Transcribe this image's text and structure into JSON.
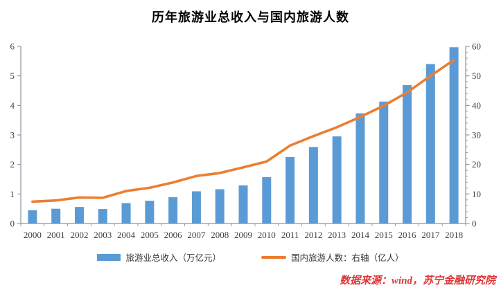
{
  "title": "历年旅游业总收入与国内旅游人数",
  "source": "数据来源：wind，苏宁金融研究院",
  "legend": [
    {
      "label": "旅游业总收入（万亿元）",
      "type": "bar"
    },
    {
      "label": "国内旅游人数：右轴（亿人）",
      "type": "line"
    }
  ],
  "colors": {
    "bar": "#5B9BD5",
    "line": "#ED7D31",
    "axis": "#8a93a0",
    "tick_label": "#3f3f3f",
    "title_text": "#000000",
    "source_text": "#e03434",
    "background": "#ffffff"
  },
  "chart_data": {
    "type": "bar",
    "subtype": "bar+line dual axis",
    "title": "历年旅游业总收入与国内旅游人数",
    "categories": [
      "2000",
      "2001",
      "2002",
      "2003",
      "2004",
      "2005",
      "2006",
      "2007",
      "2008",
      "2009",
      "2010",
      "2011",
      "2012",
      "2013",
      "2014",
      "2015",
      "2016",
      "2017",
      "2018"
    ],
    "series": [
      {
        "name": "旅游业总收入（万亿元）",
        "type": "bar",
        "axis": "left",
        "color": "#5B9BD5",
        "values": [
          0.45,
          0.5,
          0.56,
          0.49,
          0.69,
          0.77,
          0.89,
          1.09,
          1.16,
          1.29,
          1.57,
          2.25,
          2.59,
          2.95,
          3.73,
          4.13,
          4.69,
          5.4,
          5.97
        ]
      },
      {
        "name": "国内旅游人数：右轴（亿人）",
        "type": "line",
        "axis": "right",
        "color": "#ED7D31",
        "values": [
          7.4,
          7.8,
          8.8,
          8.7,
          11.0,
          12.1,
          13.9,
          16.1,
          17.1,
          19.0,
          21.0,
          26.4,
          29.6,
          32.6,
          36.1,
          39.9,
          44.4,
          50.0,
          55.4
        ]
      }
    ],
    "left_axis": {
      "min": 0,
      "max": 6,
      "tick_step": 1,
      "ticks": [
        0,
        1,
        2,
        3,
        4,
        5,
        6
      ]
    },
    "right_axis": {
      "min": 0,
      "max": 60,
      "tick_step": 10,
      "minor_step": 2,
      "ticks": [
        0,
        10,
        20,
        30,
        40,
        50,
        60
      ]
    },
    "xlabel": "",
    "ylabel": "",
    "grid": false,
    "legend_position": "bottom"
  }
}
